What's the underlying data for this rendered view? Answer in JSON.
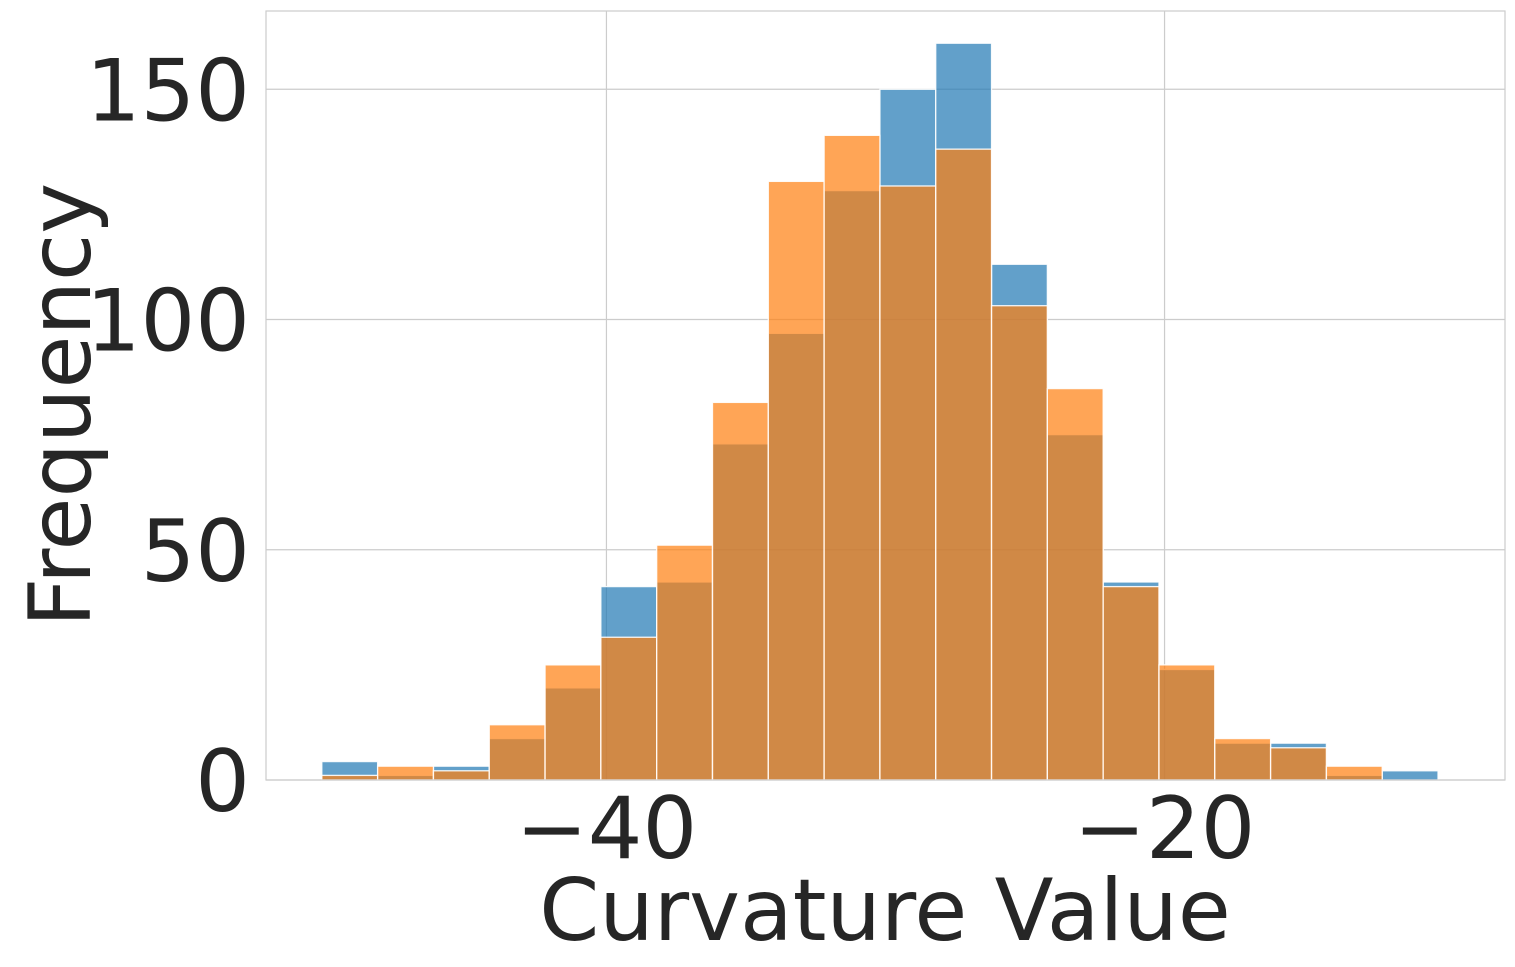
{
  "chart_data": {
    "type": "bar",
    "subtype": "overlaid-histogram",
    "xlabel": "Curvature Value",
    "ylabel": "Frequency",
    "xlim": [
      -52.2,
      -7.8
    ],
    "ylim": [
      0,
      167
    ],
    "x_ticks": [
      -40,
      -20
    ],
    "y_ticks": [
      0,
      50,
      100,
      150
    ],
    "grid": true,
    "bin_edges": [
      -50.2,
      -48.2,
      -46.2,
      -44.2,
      -42.2,
      -40.2,
      -38.2,
      -36.2,
      -34.2,
      -32.2,
      -30.2,
      -28.2,
      -26.2,
      -24.2,
      -22.2,
      -20.2,
      -18.2,
      -16.2,
      -14.2,
      -12.2,
      -10.2
    ],
    "series": [
      {
        "color": "#1f77b4",
        "opacity": 0.7,
        "values": [
          4,
          1,
          3,
          9,
          20,
          42,
          43,
          73,
          97,
          128,
          150,
          160,
          112,
          75,
          43,
          24,
          8,
          8,
          1,
          2
        ]
      },
      {
        "color": "#ff7f0e",
        "opacity": 0.7,
        "values": [
          1,
          3,
          2,
          12,
          25,
          31,
          51,
          82,
          130,
          140,
          129,
          137,
          103,
          85,
          42,
          25,
          9,
          7,
          3,
          0
        ]
      }
    ]
  }
}
